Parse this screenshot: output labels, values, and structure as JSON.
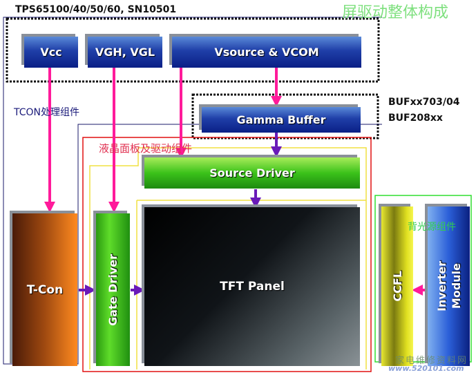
{
  "title": "屏驱动整体构成",
  "chip_label": "TPS65100/40/50/60, SN10501",
  "buffer_chip_label": [
    "BUFxx703/04",
    "BUF208xx"
  ],
  "groups": {
    "tcon": "TCON处理组件",
    "panel": "液晶面板及驱动组件",
    "backlight": "背光源组件"
  },
  "blocks": {
    "vcc": "Vcc",
    "vgh": "VGH, VGL",
    "vsource": "Vsource & VCOM",
    "gamma": "Gamma Buffer",
    "source_driver": "Source Driver",
    "tcon": "T-Con",
    "gate_driver": "Gate Driver",
    "tft_panel": "TFT Panel",
    "ccfl": "CCFL",
    "inverter": [
      "Inverter",
      "Module"
    ]
  },
  "watermark": [
    "家电维修资料网",
    "www.520101.com"
  ],
  "colors": {
    "power_arrow": "#ff1a9a",
    "signal_arrow": "#6a1ab8",
    "panel_group": "#e01010",
    "backlight_group": "#30dd30",
    "title": "#7ee07e"
  }
}
